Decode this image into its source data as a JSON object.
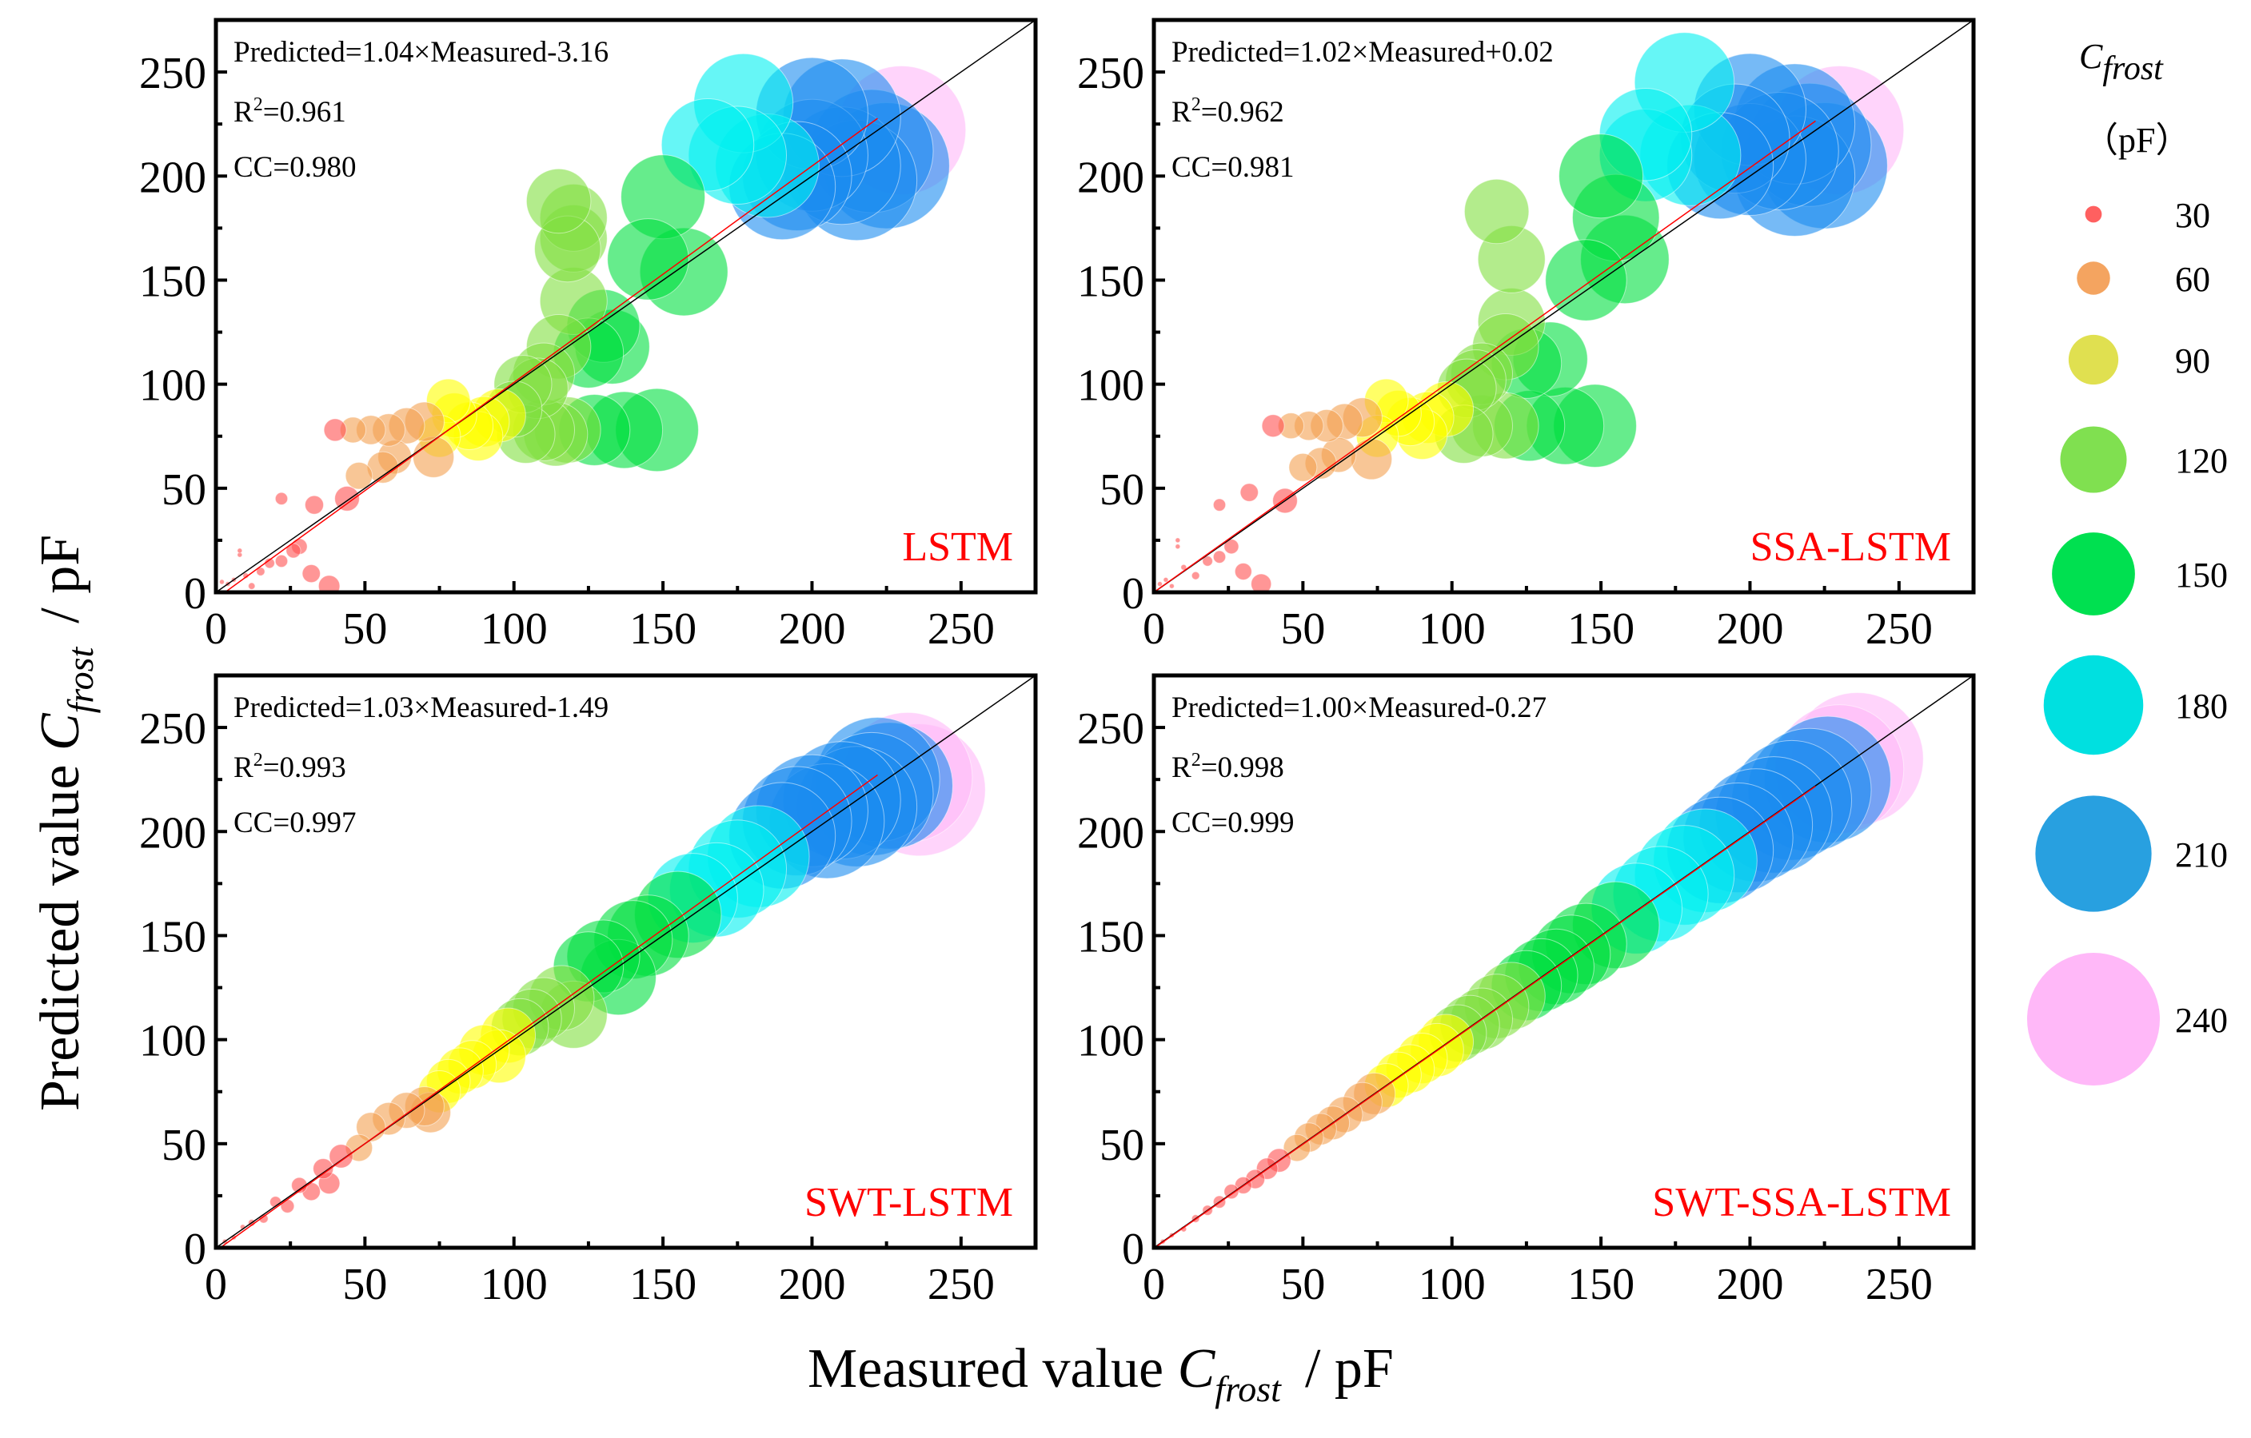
{
  "axis": {
    "x_title": {
      "main": "Measured value ",
      "var": "C",
      "sub": "frost",
      "unit": "/  pF"
    },
    "y_title": {
      "main": "Predicted value ",
      "var": "C",
      "sub": "frost",
      "unit": "/  pF"
    }
  },
  "legend": {
    "title_var": "C",
    "title_sub": "frost",
    "unit": "（pF）",
    "items": [
      {
        "value": "30",
        "color": "#ff6060"
      },
      {
        "value": "60",
        "color": "#f4a460"
      },
      {
        "value": "90",
        "color": "#e0e050"
      },
      {
        "value": "120",
        "color": "#80e050"
      },
      {
        "value": "150",
        "color": "#00e050"
      },
      {
        "value": "180",
        "color": "#00e0e0"
      },
      {
        "value": "210",
        "color": "#28a0e0"
      },
      {
        "value": "240",
        "color": "#ffb8f8"
      }
    ]
  },
  "chart_data": [
    {
      "type": "scatter",
      "title": "LSTM",
      "equation": "Predicted=1.04×Measured-3.16",
      "r2_prefix": "R",
      "r2_sup": "2",
      "r2_value": "=0.961",
      "cc": "CC=0.980",
      "fit": {
        "slope": 1.04,
        "intercept": -3.16
      },
      "xlabel": "Measured value Cfrost / pF",
      "ylabel": "Predicted value Cfrost / pF",
      "xlim": [
        0,
        275
      ],
      "ylim": [
        0,
        275
      ],
      "ticks": [
        "0",
        "50",
        "100",
        "150",
        "200",
        "250"
      ],
      "points": [
        [
          2,
          5
        ],
        [
          4,
          4
        ],
        [
          6,
          6
        ],
        [
          8,
          18
        ],
        [
          8,
          20
        ],
        [
          10,
          8
        ],
        [
          12,
          3
        ],
        [
          15,
          10
        ],
        [
          18,
          14
        ],
        [
          22,
          15
        ],
        [
          26,
          20
        ],
        [
          28,
          22
        ],
        [
          32,
          9
        ],
        [
          38,
          3
        ],
        [
          22,
          45
        ],
        [
          33,
          42
        ],
        [
          44,
          45
        ],
        [
          48,
          56
        ],
        [
          56,
          60
        ],
        [
          60,
          65
        ],
        [
          73,
          65
        ],
        [
          40,
          78
        ],
        [
          46,
          78
        ],
        [
          52,
          78
        ],
        [
          58,
          78
        ],
        [
          64,
          80
        ],
        [
          70,
          82
        ],
        [
          75,
          75
        ],
        [
          78,
          92
        ],
        [
          80,
          85
        ],
        [
          85,
          80
        ],
        [
          90,
          82
        ],
        [
          95,
          85
        ],
        [
          88,
          75
        ],
        [
          100,
          88
        ],
        [
          110,
          78
        ],
        [
          118,
          78
        ],
        [
          127,
          78
        ],
        [
          137,
          78
        ],
        [
          148,
          78
        ],
        [
          104,
          76
        ],
        [
          114,
          76
        ],
        [
          103,
          100
        ],
        [
          110,
          105
        ],
        [
          115,
          118
        ],
        [
          125,
          115
        ],
        [
          133,
          118
        ],
        [
          108,
          98
        ],
        [
          120,
          140
        ],
        [
          130,
          128
        ],
        [
          157,
          154
        ],
        [
          118,
          165
        ],
        [
          120,
          170
        ],
        [
          145,
          160
        ],
        [
          115,
          188
        ],
        [
          120,
          180
        ],
        [
          150,
          190
        ],
        [
          165,
          215
        ],
        [
          175,
          210
        ],
        [
          185,
          205
        ],
        [
          195,
          200
        ],
        [
          200,
          210
        ],
        [
          210,
          205
        ],
        [
          220,
          212
        ],
        [
          225,
          205
        ],
        [
          190,
          195
        ],
        [
          215,
          198
        ],
        [
          177,
          235
        ],
        [
          200,
          230
        ],
        [
          210,
          228
        ],
        [
          230,
          222
        ]
      ]
    },
    {
      "type": "scatter",
      "title": "SSA-LSTM",
      "equation": "Predicted=1.02×Measured+0.02",
      "r2_prefix": "R",
      "r2_sup": "2",
      "r2_value": "=0.962",
      "cc": "CC=0.981",
      "fit": {
        "slope": 1.02,
        "intercept": 0.02
      },
      "xlabel": "Measured value Cfrost / pF",
      "ylabel": "Predicted value Cfrost / pF",
      "xlim": [
        0,
        275
      ],
      "ylim": [
        0,
        275
      ],
      "ticks": [
        "0",
        "50",
        "100",
        "150",
        "200",
        "250"
      ],
      "points": [
        [
          2,
          4
        ],
        [
          4,
          6
        ],
        [
          6,
          3
        ],
        [
          8,
          22
        ],
        [
          8,
          25
        ],
        [
          10,
          12
        ],
        [
          14,
          8
        ],
        [
          18,
          15
        ],
        [
          22,
          17
        ],
        [
          26,
          22
        ],
        [
          30,
          10
        ],
        [
          36,
          4
        ],
        [
          22,
          42
        ],
        [
          32,
          48
        ],
        [
          44,
          44
        ],
        [
          50,
          60
        ],
        [
          56,
          62
        ],
        [
          62,
          66
        ],
        [
          73,
          64
        ],
        [
          40,
          80
        ],
        [
          46,
          80
        ],
        [
          52,
          80
        ],
        [
          58,
          80
        ],
        [
          64,
          82
        ],
        [
          70,
          84
        ],
        [
          75,
          75
        ],
        [
          78,
          92
        ],
        [
          82,
          86
        ],
        [
          86,
          82
        ],
        [
          92,
          84
        ],
        [
          98,
          88
        ],
        [
          90,
          76
        ],
        [
          110,
          80
        ],
        [
          118,
          80
        ],
        [
          126,
          80
        ],
        [
          138,
          80
        ],
        [
          148,
          80
        ],
        [
          104,
          76
        ],
        [
          105,
          98
        ],
        [
          110,
          105
        ],
        [
          118,
          118
        ],
        [
          125,
          110
        ],
        [
          133,
          112
        ],
        [
          108,
          102
        ],
        [
          120,
          130
        ],
        [
          145,
          150
        ],
        [
          115,
          183
        ],
        [
          120,
          160
        ],
        [
          155,
          180
        ],
        [
          158,
          160
        ],
        [
          150,
          200
        ],
        [
          165,
          210
        ],
        [
          180,
          210
        ],
        [
          190,
          205
        ],
        [
          200,
          208
        ],
        [
          210,
          212
        ],
        [
          220,
          215
        ],
        [
          225,
          205
        ],
        [
          195,
          218
        ],
        [
          215,
          200
        ],
        [
          178,
          245
        ],
        [
          165,
          220
        ],
        [
          200,
          232
        ],
        [
          215,
          225
        ],
        [
          230,
          222
        ]
      ]
    },
    {
      "type": "scatter",
      "title": "SWT-LSTM",
      "equation": "Predicted=1.03×Measured-1.49",
      "r2_prefix": "R",
      "r2_sup": "2",
      "r2_value": "=0.993",
      "cc": "CC=0.997",
      "fit": {
        "slope": 1.03,
        "intercept": -1.49
      },
      "xlabel": "Measured value Cfrost / pF",
      "ylabel": "Predicted value Cfrost / pF",
      "xlim": [
        0,
        275
      ],
      "ylim": [
        0,
        275
      ],
      "ticks": [
        "0",
        "50",
        "100",
        "150",
        "200",
        "250"
      ],
      "points": [
        [
          3,
          3
        ],
        [
          6,
          5
        ],
        [
          9,
          10
        ],
        [
          12,
          12
        ],
        [
          16,
          14
        ],
        [
          20,
          22
        ],
        [
          24,
          20
        ],
        [
          28,
          30
        ],
        [
          32,
          27
        ],
        [
          38,
          31
        ],
        [
          36,
          38
        ],
        [
          42,
          44
        ],
        [
          48,
          48
        ],
        [
          52,
          58
        ],
        [
          58,
          62
        ],
        [
          64,
          66
        ],
        [
          70,
          68
        ],
        [
          72,
          65
        ],
        [
          75,
          75
        ],
        [
          78,
          80
        ],
        [
          82,
          85
        ],
        [
          86,
          88
        ],
        [
          90,
          95
        ],
        [
          95,
          92
        ],
        [
          98,
          102
        ],
        [
          102,
          106
        ],
        [
          106,
          110
        ],
        [
          110,
          115
        ],
        [
          116,
          120
        ],
        [
          120,
          112
        ],
        [
          125,
          135
        ],
        [
          130,
          140
        ],
        [
          135,
          130
        ],
        [
          140,
          148
        ],
        [
          145,
          150
        ],
        [
          155,
          160
        ],
        [
          160,
          168
        ],
        [
          168,
          172
        ],
        [
          175,
          182
        ],
        [
          182,
          188
        ],
        [
          190,
          198
        ],
        [
          195,
          205
        ],
        [
          200,
          210
        ],
        [
          205,
          205
        ],
        [
          210,
          215
        ],
        [
          215,
          212
        ],
        [
          220,
          218
        ],
        [
          222,
          225
        ],
        [
          226,
          222
        ],
        [
          232,
          226
        ],
        [
          236,
          220
        ]
      ]
    },
    {
      "type": "scatter",
      "title": "SWT-SSA-LSTM",
      "equation": "Predicted=1.00×Measured-0.27",
      "r2_prefix": "R",
      "r2_sup": "2",
      "r2_value": "=0.998",
      "cc": "CC=0.999",
      "fit": {
        "slope": 1.0,
        "intercept": -0.27
      },
      "xlabel": "Measured value Cfrost / pF",
      "ylabel": "Predicted value Cfrost / pF",
      "xlim": [
        0,
        275
      ],
      "ylim": [
        0,
        275
      ],
      "ticks": [
        "0",
        "50",
        "100",
        "150",
        "200",
        "250"
      ],
      "points": [
        [
          3,
          3
        ],
        [
          6,
          6
        ],
        [
          10,
          9
        ],
        [
          14,
          14
        ],
        [
          18,
          18
        ],
        [
          22,
          22
        ],
        [
          26,
          27
        ],
        [
          30,
          30
        ],
        [
          34,
          33
        ],
        [
          38,
          38
        ],
        [
          42,
          42
        ],
        [
          48,
          48
        ],
        [
          52,
          53
        ],
        [
          56,
          57
        ],
        [
          60,
          60
        ],
        [
          64,
          64
        ],
        [
          70,
          70
        ],
        [
          74,
          74
        ],
        [
          78,
          78
        ],
        [
          82,
          83
        ],
        [
          86,
          86
        ],
        [
          90,
          91
        ],
        [
          95,
          95
        ],
        [
          98,
          99
        ],
        [
          102,
          103
        ],
        [
          106,
          107
        ],
        [
          110,
          110
        ],
        [
          115,
          116
        ],
        [
          120,
          121
        ],
        [
          125,
          126
        ],
        [
          130,
          131
        ],
        [
          135,
          135
        ],
        [
          140,
          141
        ],
        [
          145,
          146
        ],
        [
          155,
          155
        ],
        [
          162,
          163
        ],
        [
          170,
          170
        ],
        [
          178,
          179
        ],
        [
          185,
          186
        ],
        [
          190,
          191
        ],
        [
          196,
          197
        ],
        [
          202,
          203
        ],
        [
          208,
          208
        ],
        [
          214,
          215
        ],
        [
          220,
          220
        ],
        [
          226,
          225
        ],
        [
          230,
          230
        ],
        [
          236,
          235
        ]
      ]
    }
  ]
}
